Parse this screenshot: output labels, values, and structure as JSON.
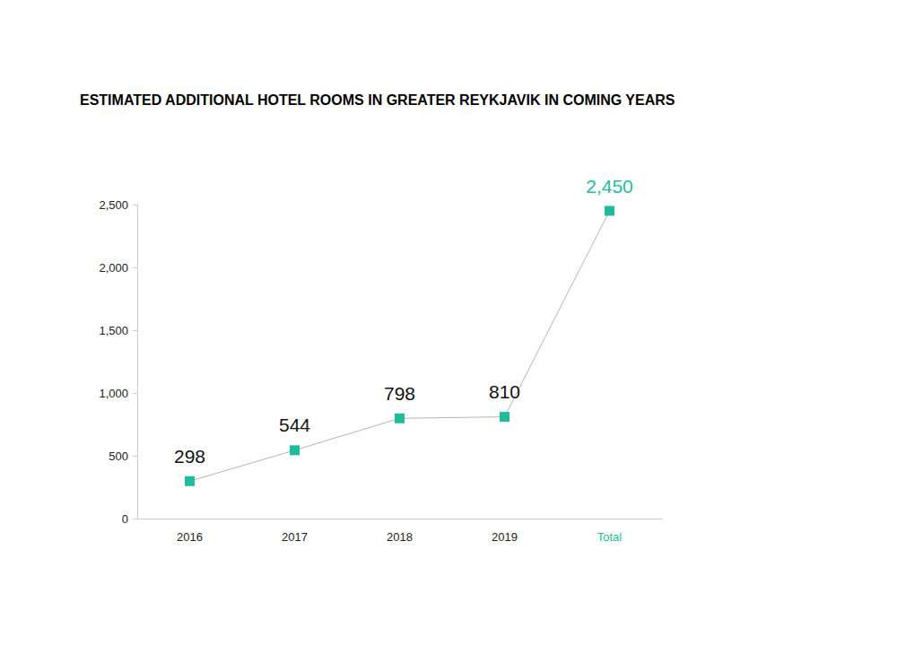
{
  "chart_data": {
    "type": "line",
    "title": "ESTIMATED ADDITIONAL HOTEL ROOMS IN GREATER REYKJAVIK IN COMING YEARS",
    "categories": [
      "2016",
      "2017",
      "2018",
      "2019",
      "Total"
    ],
    "values": [
      298,
      544,
      798,
      810,
      2450
    ],
    "value_labels": [
      "298",
      "544",
      "798",
      "810",
      "2,450"
    ],
    "color": "#1fbc9c",
    "marker": "square",
    "line_style": "solid",
    "ylim": [
      0,
      2500
    ],
    "yticks": [
      0,
      500,
      {
        "value": 1000,
        "label": "1,000"
      },
      {
        "value": 1500,
        "label": "1,500"
      },
      {
        "value": 2000,
        "label": "2,000"
      },
      {
        "value": 2500,
        "label": "2,500"
      }
    ],
    "grid": false,
    "data_labels": true
  }
}
